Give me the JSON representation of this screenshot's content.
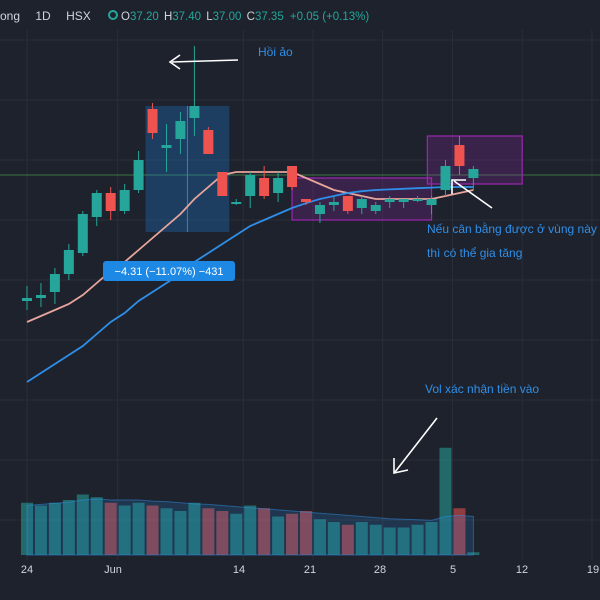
{
  "header": {
    "symbol": "ong",
    "interval": "1D",
    "exchange": "HSX",
    "ohlc": [
      {
        "key": "O",
        "value": "37.20"
      },
      {
        "key": "H",
        "value": "37.40"
      },
      {
        "key": "L",
        "value": "37.00"
      },
      {
        "key": "C",
        "value": "37.35"
      }
    ],
    "change": "+0.05 (+0.13%)"
  },
  "measure_label": "−4.31 (−11.07%) −431",
  "annotations": {
    "hoi_ao": "Hồi ảo",
    "can_bang_1": "Nếu cân bằng được ở vùng này",
    "can_bang_2": "thì có thể gia tăng",
    "vol": "Vol xác nhận tiền vào"
  },
  "colors": {
    "background": "#1e222d",
    "up": "#26a69a",
    "down": "#ef5350",
    "ma_fast": "#e8a59c",
    "ma_slow": "#2f8fe8",
    "annotation_text": "#2f8fe8",
    "zone": "#9c27b0",
    "measure": "#1e88e5"
  },
  "chart_data": {
    "type": "candlestick",
    "x_tick_labels": [
      "24",
      "Jun",
      "14",
      "21",
      "28",
      "5",
      "12",
      "19"
    ],
    "candles": [
      {
        "o": 35.15,
        "h": 35.4,
        "l": 35.0,
        "c": 35.2
      },
      {
        "o": 35.2,
        "h": 35.45,
        "l": 35.05,
        "c": 35.25
      },
      {
        "o": 35.3,
        "h": 35.7,
        "l": 35.1,
        "c": 35.6
      },
      {
        "o": 35.6,
        "h": 36.1,
        "l": 35.5,
        "c": 36.0
      },
      {
        "o": 35.95,
        "h": 36.65,
        "l": 35.9,
        "c": 36.6
      },
      {
        "o": 36.55,
        "h": 37.0,
        "l": 36.4,
        "c": 36.95
      },
      {
        "o": 36.95,
        "h": 37.05,
        "l": 36.5,
        "c": 36.65
      },
      {
        "o": 36.65,
        "h": 37.1,
        "l": 36.6,
        "c": 37.0
      },
      {
        "o": 37.0,
        "h": 37.65,
        "l": 36.95,
        "c": 37.5
      },
      {
        "o": 38.35,
        "h": 38.45,
        "l": 37.85,
        "c": 37.95
      },
      {
        "o": 37.7,
        "h": 38.1,
        "l": 37.3,
        "c": 37.75
      },
      {
        "o": 37.85,
        "h": 38.3,
        "l": 37.6,
        "c": 38.15
      },
      {
        "o": 38.2,
        "h": 39.4,
        "l": 37.9,
        "c": 38.4
      },
      {
        "o": 38.0,
        "h": 38.05,
        "l": 37.6,
        "c": 37.6
      },
      {
        "o": 37.3,
        "h": 37.3,
        "l": 36.9,
        "c": 36.9
      },
      {
        "o": 36.8,
        "h": 36.85,
        "l": 36.75,
        "c": 36.8
      },
      {
        "o": 36.9,
        "h": 37.3,
        "l": 36.7,
        "c": 37.25
      },
      {
        "o": 37.2,
        "h": 37.4,
        "l": 36.85,
        "c": 36.9
      },
      {
        "o": 36.95,
        "h": 37.3,
        "l": 36.8,
        "c": 37.2
      },
      {
        "o": 37.4,
        "h": 37.4,
        "l": 37.0,
        "c": 37.05
      },
      {
        "o": 36.85,
        "h": 36.85,
        "l": 36.75,
        "c": 36.8
      },
      {
        "o": 36.6,
        "h": 36.8,
        "l": 36.45,
        "c": 36.75
      },
      {
        "o": 36.75,
        "h": 36.9,
        "l": 36.65,
        "c": 36.8
      },
      {
        "o": 36.9,
        "h": 36.9,
        "l": 36.6,
        "c": 36.65
      },
      {
        "o": 36.7,
        "h": 36.9,
        "l": 36.6,
        "c": 36.85
      },
      {
        "o": 36.65,
        "h": 36.8,
        "l": 36.6,
        "c": 36.75
      },
      {
        "o": 36.8,
        "h": 36.9,
        "l": 36.7,
        "c": 36.85
      },
      {
        "o": 36.8,
        "h": 36.85,
        "l": 36.7,
        "c": 36.85
      },
      {
        "o": 36.85,
        "h": 36.9,
        "l": 36.8,
        "c": 36.85
      },
      {
        "o": 36.75,
        "h": 36.9,
        "l": 36.6,
        "c": 36.85
      },
      {
        "o": 37.0,
        "h": 37.5,
        "l": 36.9,
        "c": 37.4
      },
      {
        "o": 37.75,
        "h": 37.9,
        "l": 37.25,
        "c": 37.4
      },
      {
        "o": 37.2,
        "h": 37.4,
        "l": 37.0,
        "c": 37.35
      }
    ],
    "ma_fast": [
      34.8,
      34.9,
      35.0,
      35.1,
      35.25,
      35.45,
      35.65,
      35.8,
      36.0,
      36.2,
      36.4,
      36.6,
      36.85,
      37.05,
      37.25,
      37.3,
      37.3,
      37.3,
      37.3,
      37.3,
      37.2,
      37.1,
      37.0,
      36.95,
      36.9,
      36.85,
      36.85,
      36.85,
      36.85,
      36.85,
      36.9,
      36.95,
      37.0
    ],
    "ma_slow": [
      33.8,
      33.95,
      34.1,
      34.25,
      34.4,
      34.6,
      34.8,
      34.95,
      35.15,
      35.3,
      35.45,
      35.6,
      35.8,
      35.95,
      36.1,
      36.25,
      36.4,
      36.5,
      36.6,
      36.7,
      36.78,
      36.85,
      36.9,
      36.95,
      36.98,
      37.0,
      37.01,
      37.02,
      37.03,
      37.04,
      37.05,
      37.05,
      37.05
    ],
    "volume": [
      0.95,
      0.9,
      0.95,
      1.0,
      1.1,
      1.05,
      0.95,
      0.9,
      0.95,
      0.9,
      0.85,
      0.8,
      0.95,
      0.85,
      0.8,
      0.75,
      0.9,
      0.85,
      0.7,
      0.75,
      0.8,
      0.65,
      0.6,
      0.55,
      0.6,
      0.55,
      0.5,
      0.5,
      0.55,
      0.6,
      1.95,
      0.85,
      0.05
    ],
    "volume_ma": [
      0.9,
      0.92,
      0.94,
      0.96,
      1.0,
      1.02,
      1.0,
      1.0,
      1.0,
      0.98,
      0.97,
      0.95,
      0.93,
      0.92,
      0.9,
      0.88,
      0.86,
      0.84,
      0.82,
      0.8,
      0.78,
      0.76,
      0.74,
      0.72,
      0.7,
      0.68,
      0.66,
      0.65,
      0.64,
      0.63,
      0.7,
      0.72,
      0.7
    ],
    "h_line": 37.25,
    "measure": {
      "i0": 9,
      "i1": 14,
      "top": 38.4,
      "bottom": 36.3
    },
    "zones": [
      {
        "i0": 19,
        "i1": 29,
        "top": 37.2,
        "bottom": 36.5
      },
      {
        "i0": 28.7,
        "i1": 35.5,
        "top": 37.9,
        "bottom": 37.1
      }
    ],
    "ylim": [
      33.5,
      39.5
    ]
  }
}
